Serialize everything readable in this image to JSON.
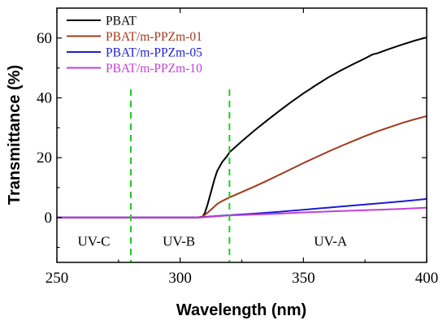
{
  "chart_data": {
    "type": "line",
    "xlabel": "Wavelength (nm)",
    "ylabel": "Transmittance (%)",
    "xlim": [
      250,
      400
    ],
    "ylim": [
      -15,
      70
    ],
    "x_ticks": [
      250,
      300,
      350,
      400
    ],
    "y_ticks": [
      0,
      20,
      40,
      60
    ],
    "grid": false,
    "legend_position": "top-left",
    "series": [
      {
        "name": "PBAT",
        "color": "#000000",
        "points": [
          [
            250,
            0
          ],
          [
            300,
            0
          ],
          [
            307,
            0
          ],
          [
            309,
            0.2
          ],
          [
            310,
            1.5
          ],
          [
            311,
            4
          ],
          [
            312,
            7
          ],
          [
            313,
            10
          ],
          [
            314,
            13
          ],
          [
            315,
            15.5
          ],
          [
            317,
            18.5
          ],
          [
            319,
            20.5
          ],
          [
            320,
            21.8
          ],
          [
            325,
            25.5
          ],
          [
            330,
            29
          ],
          [
            335,
            32.3
          ],
          [
            340,
            35.5
          ],
          [
            345,
            38.6
          ],
          [
            350,
            41.5
          ],
          [
            355,
            44.2
          ],
          [
            360,
            46.8
          ],
          [
            365,
            49.1
          ],
          [
            370,
            51.2
          ],
          [
            375,
            53.2
          ],
          [
            378,
            54.5
          ],
          [
            380,
            54.9
          ],
          [
            385,
            56.4
          ],
          [
            390,
            57.8
          ],
          [
            395,
            59.1
          ],
          [
            400,
            60.2
          ]
        ]
      },
      {
        "name": "PBAT/m-PPZm-01",
        "color": "#a0391a",
        "points": [
          [
            250,
            0
          ],
          [
            300,
            0
          ],
          [
            307,
            0
          ],
          [
            309,
            0.3
          ],
          [
            311,
            1.5
          ],
          [
            313,
            3
          ],
          [
            315,
            4.5
          ],
          [
            317,
            5.5
          ],
          [
            320,
            6.7
          ],
          [
            325,
            8.5
          ],
          [
            330,
            10.3
          ],
          [
            335,
            12.2
          ],
          [
            340,
            14.2
          ],
          [
            345,
            16.2
          ],
          [
            350,
            18.2
          ],
          [
            355,
            20.1
          ],
          [
            360,
            22
          ],
          [
            365,
            23.8
          ],
          [
            370,
            25.5
          ],
          [
            375,
            27.2
          ],
          [
            380,
            28.8
          ],
          [
            385,
            30.2
          ],
          [
            390,
            31.6
          ],
          [
            395,
            32.8
          ],
          [
            400,
            33.9
          ]
        ]
      },
      {
        "name": "PBAT/m-PPZm-05",
        "color": "#1c1cd0",
        "points": [
          [
            250,
            0
          ],
          [
            300,
            0
          ],
          [
            308,
            0
          ],
          [
            310,
            0.2
          ],
          [
            315,
            0.5
          ],
          [
            320,
            0.8
          ],
          [
            330,
            1.3
          ],
          [
            340,
            1.9
          ],
          [
            350,
            2.6
          ],
          [
            360,
            3.3
          ],
          [
            370,
            4
          ],
          [
            380,
            4.7
          ],
          [
            390,
            5.4
          ],
          [
            400,
            6.2
          ]
        ]
      },
      {
        "name": "PBAT/m-PPZm-10",
        "color": "#c040d8",
        "points": [
          [
            250,
            0
          ],
          [
            300,
            0
          ],
          [
            308,
            0
          ],
          [
            310,
            0.1
          ],
          [
            315,
            0.4
          ],
          [
            320,
            0.7
          ],
          [
            330,
            1
          ],
          [
            340,
            1.3
          ],
          [
            350,
            1.7
          ],
          [
            360,
            2
          ],
          [
            370,
            2.3
          ],
          [
            380,
            2.6
          ],
          [
            390,
            2.9
          ],
          [
            400,
            3.3
          ]
        ]
      }
    ],
    "dividers": [
      {
        "x": 280,
        "color": "#22cc22"
      },
      {
        "x": 320,
        "color": "#22cc22"
      }
    ],
    "regions": [
      {
        "label": "UV-C",
        "x": 265
      },
      {
        "label": "UV-B",
        "x": 299.5
      },
      {
        "label": "UV-A",
        "x": 361
      }
    ],
    "region_label_y": -9.5
  }
}
